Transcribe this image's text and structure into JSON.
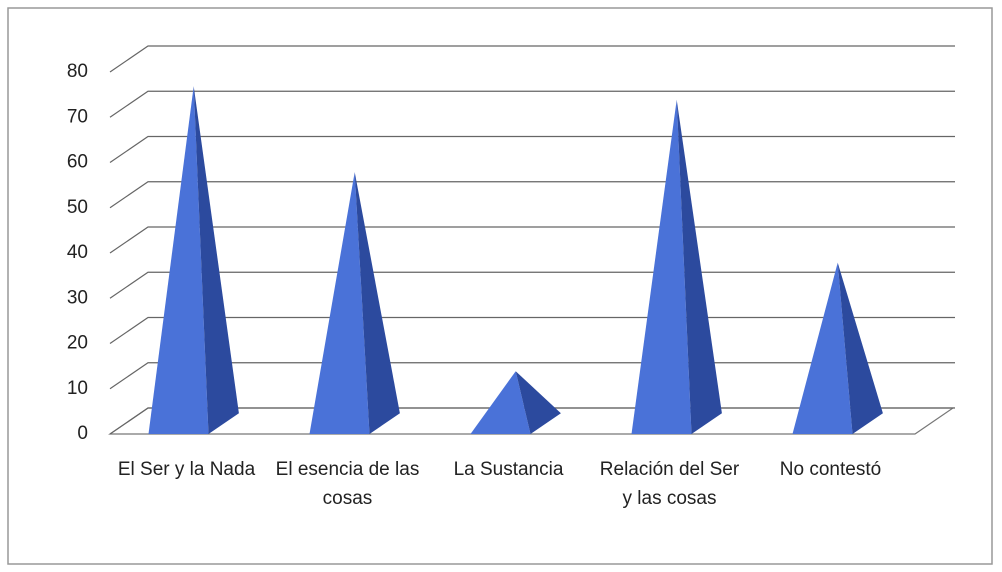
{
  "chart_data": {
    "type": "pyramid3d",
    "categories": [
      "El Ser y la Nada",
      "El esencia de las cosas",
      "La Sustancia",
      "Relación del Ser y las cosas",
      "No contestó"
    ],
    "values": [
      74,
      55,
      11,
      71,
      35
    ],
    "color": "#4a72d8",
    "ylim": [
      0,
      80
    ],
    "yticks": [
      0,
      10,
      20,
      30,
      40,
      50,
      60,
      70,
      80
    ],
    "grid": true
  }
}
